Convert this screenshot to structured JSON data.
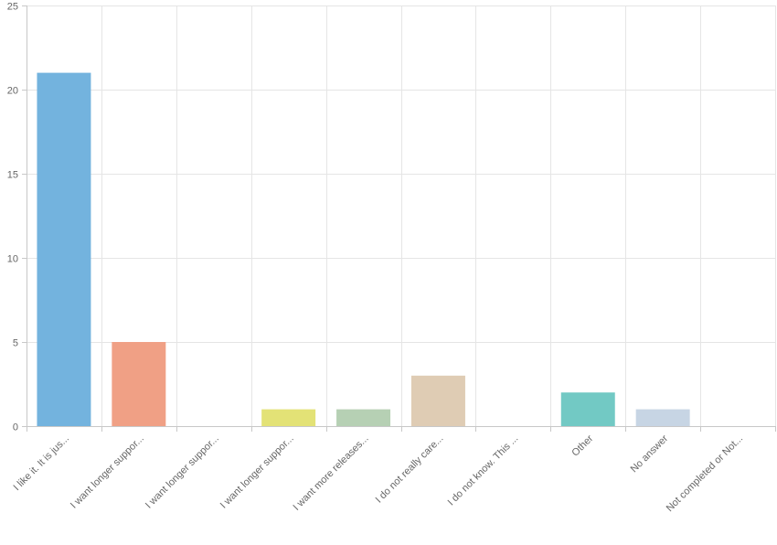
{
  "chart_data": {
    "type": "bar",
    "title": "",
    "xlabel": "",
    "ylabel": "",
    "ylim": [
      0,
      25
    ],
    "yticks": [
      0,
      5,
      10,
      15,
      20,
      25
    ],
    "grid": true,
    "categories": [
      "I like it. It is jus...",
      "I want longer suppor...",
      "I want longer suppor...",
      "I want longer suppor...",
      "I want more releases...",
      "I do not really care...",
      "I do not know. This ...",
      "Other",
      "No answer",
      "Not completed or Not..."
    ],
    "values": [
      21,
      5,
      0,
      1,
      1,
      3,
      0,
      2,
      1,
      0
    ],
    "colors": [
      "#73b3de",
      "#f0a085",
      "#f7c38d",
      "#e3e276",
      "#b6d0b4",
      "#dfccb4",
      "#c3b6d8",
      "#72c9c4",
      "#c7d5e4",
      "#e8b8c8"
    ]
  }
}
